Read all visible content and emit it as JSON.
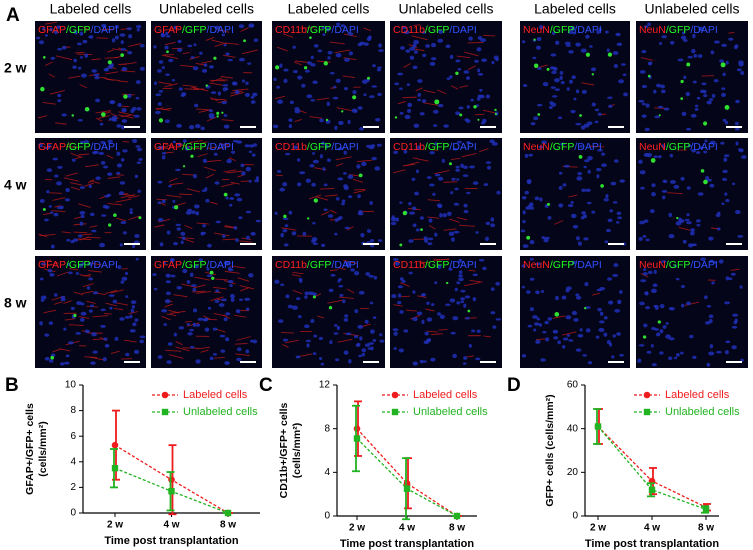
{
  "panel_a": {
    "label": "A",
    "column_headers": [
      "Labeled cells",
      "Unlabeled cells",
      "Labeled cells",
      "Unlabeled cells",
      "Labeled cells",
      "Unlabeled cells"
    ],
    "row_labels": [
      "2 w",
      "4 w",
      "8 w"
    ],
    "channel_labels": [
      [
        {
          "text": "GFAP",
          "color": "#ff2020"
        },
        {
          "text": "/GFP",
          "color": "#20ff20"
        },
        {
          "text": "/DAPI",
          "color": "#3050ff"
        }
      ],
      [
        {
          "text": "CD11b",
          "color": "#ff2020"
        },
        {
          "text": "/GFP",
          "color": "#20ff20"
        },
        {
          "text": "/DAPI",
          "color": "#3050ff"
        }
      ],
      [
        {
          "text": "NeuN",
          "color": "#ff2020"
        },
        {
          "text": "/GFP",
          "color": "#20ff20"
        },
        {
          "text": "/DAPI",
          "color": "#3050ff"
        }
      ]
    ]
  },
  "chart_data": [
    {
      "type": "line",
      "panel": "B",
      "ylabel": [
        "GFAP+/GFP+ cells",
        "(cells/mm²)"
      ],
      "xlabel": "Time post transplantation",
      "categories": [
        "2 w",
        "4 w",
        "8 w"
      ],
      "ylim": [
        0,
        10
      ],
      "yticks": [
        0,
        2,
        4,
        6,
        8,
        10
      ],
      "series": [
        {
          "name": "Labeled cells",
          "color": "#ee1c1c",
          "marker": "circle",
          "values": [
            5.3,
            2.6,
            0
          ],
          "errors": [
            2.7,
            2.7,
            0
          ]
        },
        {
          "name": "Unlabeled cells",
          "color": "#22b322",
          "marker": "square",
          "values": [
            3.5,
            1.7,
            0
          ],
          "errors": [
            1.5,
            1.5,
            0
          ]
        }
      ]
    },
    {
      "type": "line",
      "panel": "C",
      "ylabel": [
        "CD11b+/GFP+ cells",
        "(cells/mm²)"
      ],
      "xlabel": "Time post transplantation",
      "categories": [
        "2 w",
        "4 w",
        "8 w"
      ],
      "ylim": [
        0,
        12
      ],
      "yticks": [
        0,
        4,
        8,
        12
      ],
      "series": [
        {
          "name": "Labeled cells",
          "color": "#ee1c1c",
          "marker": "circle",
          "values": [
            8,
            3,
            0
          ],
          "errors": [
            2.5,
            2.3,
            0
          ]
        },
        {
          "name": "Unlabeled cells",
          "color": "#22b322",
          "marker": "square",
          "values": [
            7.1,
            2.5,
            0
          ],
          "errors": [
            3,
            2.8,
            0
          ]
        }
      ]
    },
    {
      "type": "line",
      "panel": "D",
      "ylabel": [
        "GFP+ cells (cells/mm²)"
      ],
      "xlabel": "Time post transplantation",
      "categories": [
        "2 w",
        "4 w",
        "8 w"
      ],
      "ylim": [
        0,
        60
      ],
      "yticks": [
        0,
        20,
        40,
        60
      ],
      "series": [
        {
          "name": "Labeled cells",
          "color": "#ee1c1c",
          "marker": "circle",
          "values": [
            41,
            16,
            4
          ],
          "errors": [
            8,
            6,
            1.5
          ]
        },
        {
          "name": "Unlabeled cells",
          "color": "#22b322",
          "marker": "square",
          "values": [
            41,
            12,
            3
          ],
          "errors": [
            8,
            3,
            1.5
          ]
        }
      ]
    }
  ]
}
